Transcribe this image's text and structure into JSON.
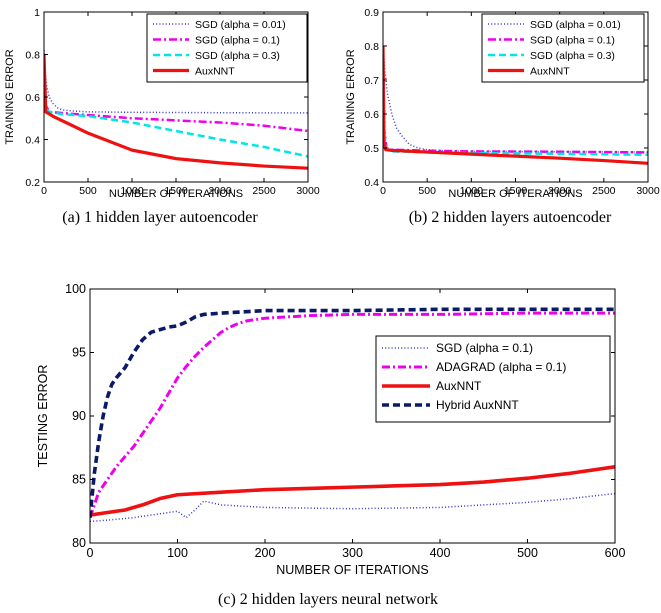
{
  "chart_data": [
    {
      "id": "a",
      "type": "line",
      "caption": "(a) 1 hidden layer autoencoder",
      "xlabel": "NUMBER OF ITERATIONS",
      "ylabel": "TRAINING ERROR",
      "xlim": [
        0,
        3000
      ],
      "ylim": [
        0.2,
        1.0
      ],
      "xticks": [
        "0",
        "500",
        "1000",
        "1500",
        "2000",
        "2500",
        "3000"
      ],
      "yticks": [
        "0.2",
        "0.4",
        "0.6",
        "0.8",
        "1"
      ],
      "grid": false,
      "legend_position": "top-right",
      "series": [
        {
          "name": "SGD (alpha = 0.01)",
          "color": "#3333cc",
          "style": "dotted",
          "x": [
            0,
            10,
            30,
            60,
            100,
            150,
            200,
            300,
            500,
            1000,
            2000,
            3000
          ],
          "y": [
            0.82,
            0.72,
            0.65,
            0.6,
            0.57,
            0.55,
            0.54,
            0.535,
            0.53,
            0.528,
            0.526,
            0.525
          ]
        },
        {
          "name": "SGD (alpha = 0.1)",
          "color": "#ee00ee",
          "style": "dashdot",
          "x": [
            0,
            20,
            60,
            200,
            500,
            1000,
            1500,
            2000,
            2500,
            3000
          ],
          "y": [
            0.8,
            0.56,
            0.53,
            0.525,
            0.515,
            0.5,
            0.49,
            0.48,
            0.465,
            0.44
          ]
        },
        {
          "name": "SGD (alpha = 0.3)",
          "color": "#00e5e5",
          "style": "dashed",
          "x": [
            0,
            20,
            60,
            200,
            500,
            1000,
            1500,
            2000,
            2500,
            3000
          ],
          "y": [
            0.8,
            0.55,
            0.53,
            0.52,
            0.51,
            0.48,
            0.44,
            0.4,
            0.365,
            0.32
          ]
        },
        {
          "name": "AuxNNT",
          "color": "#ee1111",
          "style": "solid",
          "x": [
            0,
            20,
            60,
            100,
            200,
            500,
            1000,
            1500,
            2000,
            2500,
            3000
          ],
          "y": [
            0.8,
            0.53,
            0.52,
            0.51,
            0.49,
            0.43,
            0.35,
            0.31,
            0.29,
            0.275,
            0.265
          ]
        }
      ]
    },
    {
      "id": "b",
      "type": "line",
      "caption": "(b) 2 hidden layers autoencoder",
      "xlabel": "NUMBER OF ITERATIONS",
      "ylabel": "TRAINING ERROR",
      "xlim": [
        0,
        3000
      ],
      "ylim": [
        0.4,
        0.9
      ],
      "xticks": [
        "0",
        "500",
        "1000",
        "1500",
        "2000",
        "2500",
        "3000"
      ],
      "yticks": [
        "0.4",
        "0.5",
        "0.6",
        "0.7",
        "0.8",
        "0.9"
      ],
      "grid": false,
      "legend_position": "top-right",
      "series": [
        {
          "name": "SGD (alpha = 0.01)",
          "color": "#3333cc",
          "style": "dotted",
          "x": [
            0,
            20,
            50,
            100,
            150,
            200,
            300,
            400,
            500,
            700,
            1000,
            2000,
            3000
          ],
          "y": [
            0.8,
            0.73,
            0.66,
            0.6,
            0.56,
            0.54,
            0.51,
            0.5,
            0.495,
            0.492,
            0.49,
            0.489,
            0.488
          ]
        },
        {
          "name": "SGD (alpha = 0.1)",
          "color": "#ee00ee",
          "style": "dashdot",
          "x": [
            0,
            15,
            40,
            100,
            500,
            1000,
            2000,
            3000
          ],
          "y": [
            0.8,
            0.55,
            0.5,
            0.495,
            0.492,
            0.49,
            0.489,
            0.487
          ]
        },
        {
          "name": "SGD (alpha = 0.3)",
          "color": "#00e5e5",
          "style": "dashed",
          "x": [
            0,
            15,
            40,
            100,
            500,
            1000,
            2000,
            3000
          ],
          "y": [
            0.8,
            0.54,
            0.495,
            0.49,
            0.487,
            0.485,
            0.483,
            0.48
          ]
        },
        {
          "name": "AuxNNT",
          "color": "#ee1111",
          "style": "solid",
          "x": [
            0,
            10,
            30,
            100,
            500,
            1000,
            1500,
            2000,
            2500,
            3000
          ],
          "y": [
            0.8,
            0.52,
            0.495,
            0.493,
            0.488,
            0.482,
            0.476,
            0.47,
            0.463,
            0.455
          ]
        }
      ]
    },
    {
      "id": "c",
      "type": "line",
      "caption": "(c) 2 hidden layers neural network",
      "xlabel": "NUMBER OF ITERATIONS",
      "ylabel": "TESTING ERROR",
      "xlim": [
        0,
        600
      ],
      "ylim": [
        80,
        100
      ],
      "xticks": [
        "0",
        "100",
        "200",
        "300",
        "400",
        "500",
        "600"
      ],
      "yticks": [
        "80",
        "85",
        "90",
        "95",
        "100"
      ],
      "grid": false,
      "legend_position": "right",
      "series": [
        {
          "name": "SGD (alpha = 0.1)",
          "color": "#3333cc",
          "style": "dotted",
          "x": [
            0,
            20,
            50,
            80,
            100,
            110,
            120,
            130,
            150,
            200,
            300,
            400,
            450,
            500,
            550,
            600
          ],
          "y": [
            81.7,
            81.8,
            82.0,
            82.3,
            82.5,
            82.0,
            82.6,
            83.3,
            83.0,
            82.8,
            82.7,
            82.8,
            83.0,
            83.2,
            83.5,
            83.9
          ]
        },
        {
          "name": "ADAGRAD (alpha = 0.1)",
          "color": "#ee00ee",
          "style": "dashdot",
          "x": [
            0,
            10,
            20,
            30,
            40,
            50,
            60,
            70,
            80,
            90,
            100,
            110,
            120,
            130,
            140,
            150,
            160,
            170,
            180,
            200,
            250,
            300,
            350,
            400,
            450,
            500,
            550,
            600
          ],
          "y": [
            82.0,
            84.0,
            85.0,
            86.0,
            86.8,
            87.6,
            88.6,
            89.6,
            90.6,
            91.8,
            93.0,
            93.9,
            94.7,
            95.4,
            96.0,
            96.6,
            97.0,
            97.3,
            97.5,
            97.7,
            97.9,
            98.0,
            98.0,
            98.0,
            98.05,
            98.1,
            98.1,
            98.1
          ]
        },
        {
          "name": "AuxNNT",
          "color": "#ee1111",
          "style": "solid",
          "x": [
            0,
            20,
            40,
            60,
            80,
            100,
            150,
            200,
            250,
            300,
            350,
            400,
            450,
            500,
            550,
            600
          ],
          "y": [
            82.2,
            82.4,
            82.6,
            83.0,
            83.5,
            83.8,
            84.0,
            84.2,
            84.3,
            84.4,
            84.5,
            84.6,
            84.8,
            85.1,
            85.5,
            86.0
          ]
        },
        {
          "name": "Hybrid AuxNNT",
          "color": "#0a1a66",
          "style": "dashed",
          "x": [
            0,
            5,
            10,
            15,
            20,
            25,
            30,
            40,
            50,
            60,
            70,
            80,
            90,
            100,
            110,
            120,
            130,
            150,
            200,
            250,
            300,
            400,
            500,
            600
          ],
          "y": [
            82.0,
            85.5,
            88.0,
            90.0,
            91.5,
            92.5,
            93.0,
            93.8,
            95.0,
            96.0,
            96.6,
            96.8,
            97.0,
            97.1,
            97.4,
            97.8,
            98.0,
            98.1,
            98.3,
            98.3,
            98.3,
            98.4,
            98.4,
            98.4
          ]
        }
      ]
    }
  ]
}
